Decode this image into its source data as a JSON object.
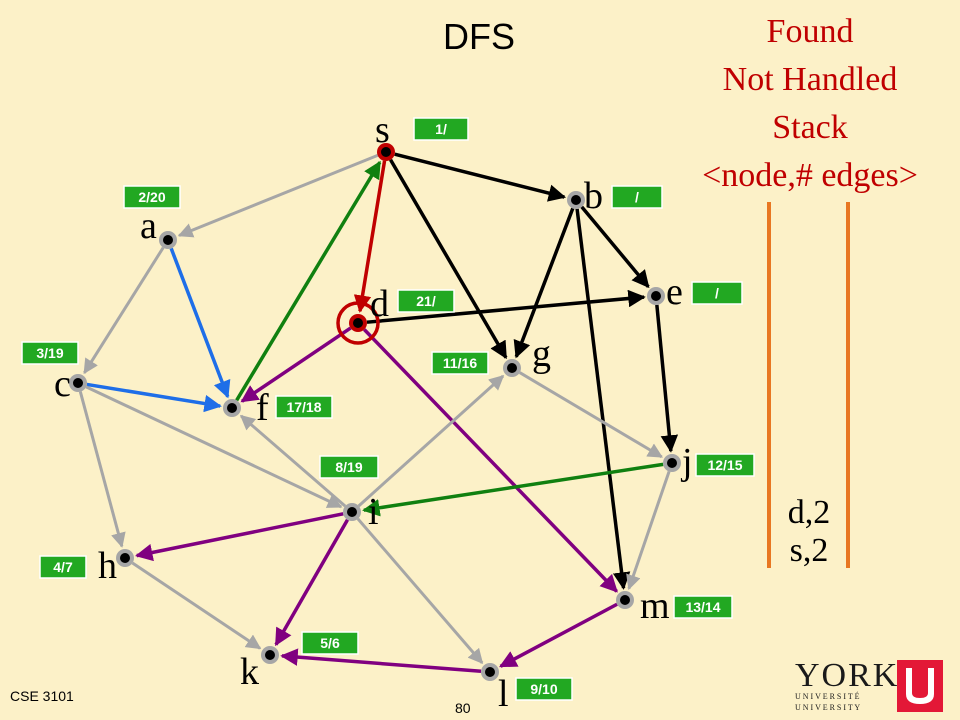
{
  "title": "DFS",
  "legend": {
    "line1": "Found",
    "line2": "Not Handled",
    "line3": "Stack",
    "line4": "<node,# edges>"
  },
  "stack_items": [
    "d,2",
    "s,2"
  ],
  "footer": {
    "course": "CSE 3101",
    "page": "80"
  },
  "logo": {
    "word": "YORK",
    "line1": "U N I V E R S I T É",
    "line2": "U N I V E R S I T Y"
  },
  "colors": {
    "background": "#fcf1c8",
    "found_box": "#22a822",
    "red": "#c00000",
    "tree_green": "#108010",
    "purple": "#800080",
    "blue": "#1e6ee8",
    "gray": "#a6a6a6",
    "orange": "#e87722"
  },
  "nodes": [
    {
      "id": "s",
      "label": "s",
      "time": "1/",
      "found": true,
      "current": false
    },
    {
      "id": "a",
      "label": "a",
      "time": "2/20",
      "found": false,
      "current": false
    },
    {
      "id": "b",
      "label": "b",
      "time": "/",
      "found": false,
      "current": false
    },
    {
      "id": "c",
      "label": "c",
      "time": "3/19",
      "found": false,
      "current": false
    },
    {
      "id": "d",
      "label": "d",
      "time": "21/",
      "found": true,
      "current": true
    },
    {
      "id": "e",
      "label": "e",
      "time": "/",
      "found": false,
      "current": false
    },
    {
      "id": "f",
      "label": "f",
      "time": "17/18",
      "found": false,
      "current": false
    },
    {
      "id": "g",
      "label": "g",
      "time": "11/16",
      "found": false,
      "current": false
    },
    {
      "id": "h",
      "label": "h",
      "time": "4/7",
      "found": false,
      "current": false
    },
    {
      "id": "i",
      "label": "i",
      "time": "8/19",
      "found": false,
      "current": false
    },
    {
      "id": "j",
      "label": "j",
      "time": "12/15",
      "found": false,
      "current": false
    },
    {
      "id": "k",
      "label": "k",
      "time": "5/6",
      "found": false,
      "current": false
    },
    {
      "id": "l",
      "label": "l",
      "time": "9/10",
      "found": false,
      "current": false
    },
    {
      "id": "m",
      "label": "m",
      "time": "13/14",
      "found": false,
      "current": false
    }
  ],
  "edges": [
    {
      "from": "s",
      "to": "a",
      "type": "gray"
    },
    {
      "from": "s",
      "to": "b",
      "type": "black"
    },
    {
      "from": "s",
      "to": "g",
      "type": "black"
    },
    {
      "from": "s",
      "to": "d",
      "type": "red"
    },
    {
      "from": "b",
      "to": "e",
      "type": "black"
    },
    {
      "from": "b",
      "to": "g",
      "type": "black"
    },
    {
      "from": "b",
      "to": "m",
      "type": "black"
    },
    {
      "from": "d",
      "to": "e",
      "type": "black"
    },
    {
      "from": "d",
      "to": "f",
      "type": "purple"
    },
    {
      "from": "d",
      "to": "m",
      "type": "purple"
    },
    {
      "from": "e",
      "to": "j",
      "type": "black"
    },
    {
      "from": "a",
      "to": "c",
      "type": "gray"
    },
    {
      "from": "a",
      "to": "f",
      "type": "blue"
    },
    {
      "from": "c",
      "to": "f",
      "type": "blue"
    },
    {
      "from": "c",
      "to": "i",
      "type": "gray"
    },
    {
      "from": "c",
      "to": "h",
      "type": "gray"
    },
    {
      "from": "f",
      "to": "s",
      "type": "green"
    },
    {
      "from": "i",
      "to": "f",
      "type": "gray"
    },
    {
      "from": "i",
      "to": "g",
      "type": "gray"
    },
    {
      "from": "i",
      "to": "h",
      "type": "purple"
    },
    {
      "from": "i",
      "to": "k",
      "type": "purple"
    },
    {
      "from": "i",
      "to": "l",
      "type": "gray"
    },
    {
      "from": "g",
      "to": "j",
      "type": "gray"
    },
    {
      "from": "j",
      "to": "i",
      "type": "green"
    },
    {
      "from": "j",
      "to": "m",
      "type": "gray"
    },
    {
      "from": "h",
      "to": "k",
      "type": "gray"
    },
    {
      "from": "l",
      "to": "k",
      "type": "purple"
    },
    {
      "from": "m",
      "to": "l",
      "type": "purple"
    }
  ]
}
